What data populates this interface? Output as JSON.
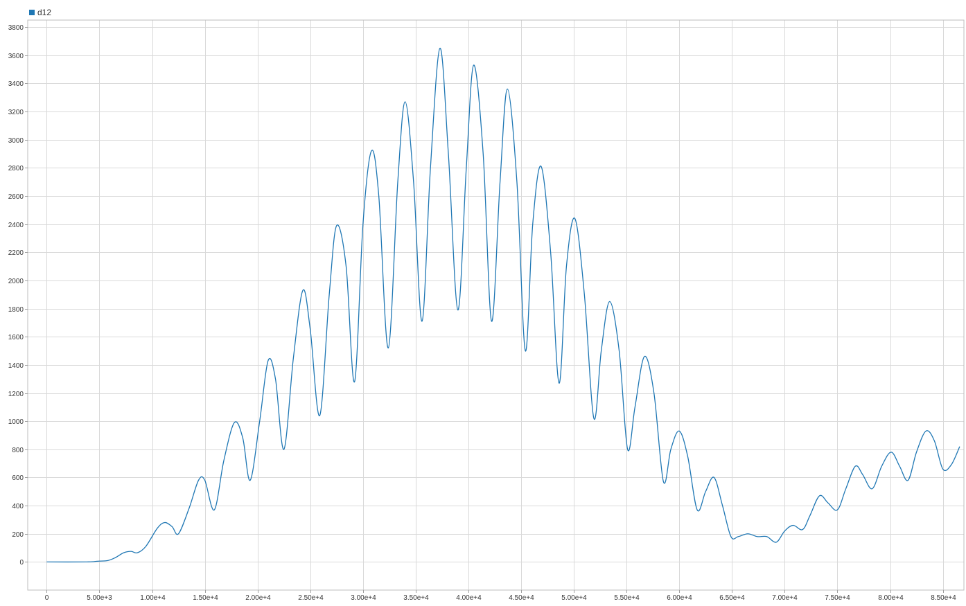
{
  "chart_data": {
    "type": "line",
    "title": "",
    "xlabel": "",
    "ylabel": "",
    "xlim": [
      -1800,
      87000
    ],
    "ylim": [
      -200,
      3850
    ],
    "grid": true,
    "legend": {
      "placement": "top-left",
      "entries": [
        "d12"
      ]
    },
    "x_ticks": [
      0,
      5000,
      10000,
      15000,
      20000,
      25000,
      30000,
      35000,
      40000,
      45000,
      50000,
      55000,
      60000,
      65000,
      70000,
      75000,
      80000,
      85000
    ],
    "x_tick_labels": [
      "0",
      "5.00e+3",
      "1.00e+4",
      "1.50e+4",
      "2.00e+4",
      "2.50e+4",
      "3.00e+4",
      "3.50e+4",
      "4.00e+4",
      "4.50e+4",
      "5.00e+4",
      "5.50e+4",
      "6.00e+4",
      "6.50e+4",
      "7.00e+4",
      "7.50e+4",
      "8.00e+4",
      "8.50e+4"
    ],
    "y_ticks": [
      0,
      200,
      400,
      600,
      800,
      1000,
      1200,
      1400,
      1600,
      1800,
      2000,
      2200,
      2400,
      2600,
      2800,
      3000,
      3200,
      3400,
      3600,
      3800
    ],
    "y_tick_labels": [
      "0",
      "200",
      "400",
      "600",
      "800",
      "1000",
      "1200",
      "1400",
      "1600",
      "1800",
      "2000",
      "2200",
      "2400",
      "2600",
      "2800",
      "3000",
      "3200",
      "3400",
      "3600",
      "3800"
    ],
    "series": [
      {
        "name": "d12",
        "color": "#1f77b4",
        "x": [
          0,
          3800,
          4800,
          5800,
          6500,
          7300,
          8000,
          8600,
          9400,
          10500,
          11200,
          11900,
          12500,
          13500,
          14400,
          15000,
          15900,
          16800,
          17800,
          18600,
          19300,
          20200,
          21000,
          21700,
          22500,
          23400,
          24300,
          25000,
          25900,
          26800,
          27500,
          28400,
          29200,
          30000,
          30800,
          31500,
          32400,
          33300,
          34000,
          34800,
          35600,
          36400,
          37300,
          38100,
          39000,
          39800,
          40500,
          41400,
          42200,
          43000,
          43700,
          44600,
          45400,
          46100,
          46900,
          47800,
          48600,
          49300,
          50100,
          51000,
          51900,
          52600,
          53400,
          54300,
          55100,
          55800,
          56700,
          57600,
          58500,
          59200,
          60000,
          60800,
          61700,
          62500,
          63300,
          64100,
          64900,
          65600,
          66500,
          67400,
          68300,
          69200,
          70000,
          70800,
          71700,
          72400,
          73300,
          74100,
          75000,
          75800,
          76700,
          77400,
          78300,
          79200,
          80100,
          80900,
          81700,
          82500,
          83400,
          84200,
          85000,
          85800,
          86600
        ],
        "values": [
          0,
          0,
          5,
          10,
          30,
          65,
          75,
          65,
          110,
          240,
          280,
          250,
          200,
          380,
          580,
          580,
          370,
          720,
          990,
          880,
          580,
          1000,
          1430,
          1300,
          800,
          1450,
          1930,
          1650,
          1040,
          1900,
          2390,
          2100,
          1280,
          2400,
          2920,
          2600,
          1520,
          2700,
          3270,
          2700,
          1710,
          2800,
          3650,
          2900,
          1790,
          2800,
          3530,
          2900,
          1710,
          2700,
          3360,
          2700,
          1500,
          2400,
          2810,
          2200,
          1270,
          2100,
          2440,
          1900,
          1020,
          1500,
          1850,
          1500,
          800,
          1100,
          1460,
          1200,
          570,
          800,
          930,
          750,
          370,
          500,
          600,
          400,
          180,
          180,
          200,
          180,
          180,
          140,
          220,
          260,
          230,
          330,
          470,
          420,
          370,
          520,
          680,
          620,
          520,
          680,
          780,
          680,
          580,
          780,
          930,
          860,
          660,
          690,
          820
        ]
      }
    ]
  }
}
